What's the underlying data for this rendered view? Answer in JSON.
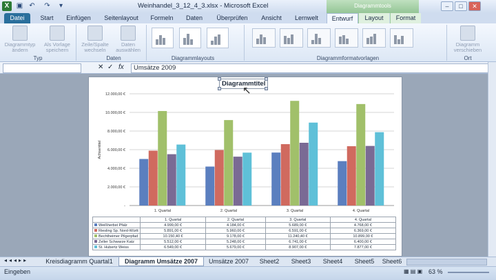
{
  "window": {
    "title": "Weinhandel_3_12_4_3.xlsx - Microsoft Excel",
    "context_tools": "Diagrammtools"
  },
  "ribbon_tabs": [
    "Datei",
    "Start",
    "Einfügen",
    "Seitenlayout",
    "Formeln",
    "Daten",
    "Überprüfen",
    "Ansicht",
    "Lernwelt",
    "Entwurf",
    "Layout",
    "Format"
  ],
  "ribbon": {
    "groups": [
      "Typ",
      "Daten",
      "Diagrammlayouts",
      "Diagrammformatvorlagen",
      "Ort"
    ],
    "buttons": {
      "change_type": "Diagrammtyp ändern",
      "save_template": "Als Vorlage speichern",
      "switch_row_col": "Zeile/Spalte wechseln",
      "select_data": "Daten auswählen",
      "move_chart": "Diagramm verschieben"
    }
  },
  "formula_bar": {
    "content": "Umsätze 2009"
  },
  "chart": {
    "title": "Diagrammtitel",
    "ylabel": "Achsentitel"
  },
  "sheet_tabs": [
    "Kreisdiagramm Quartal1",
    "Diagramm Umsätze 2007",
    "Umsätze 2007",
    "Sheet2",
    "Sheet3",
    "Sheet4",
    "Sheet5",
    "Sheet6"
  ],
  "status": {
    "mode": "Eingeben",
    "zoom": "63 %"
  },
  "colors": {
    "series": [
      "#5b7fbf",
      "#d06a5f",
      "#a1c06a",
      "#7a6a94",
      "#5fc0d8"
    ]
  },
  "chart_data": {
    "type": "bar",
    "title": "Diagrammtitel",
    "ylabel": "Achsentitel",
    "categories": [
      "1. Quartal",
      "2. Quartal",
      "3. Quartal",
      "4. Quartal"
    ],
    "ylim": [
      0,
      12000
    ],
    "yticks": [
      "-",
      "2.000,00 €",
      "4.000,00 €",
      "6.000,00 €",
      "8.000,00 €",
      "10.000,00 €",
      "12.000,00 €"
    ],
    "grid": true,
    "series": [
      {
        "name": "Weißherbst Pfalz",
        "values": [
          4999,
          4184,
          5689,
          4768
        ],
        "labels": [
          "4.999,00 €",
          "4.184,00 €",
          "5.689,00 €",
          "4.768,00 €"
        ]
      },
      {
        "name": "Riesling Sp. Nord-Württ",
        "values": [
          5891,
          5960,
          6591,
          6369
        ],
        "labels": [
          "5.891,00 €",
          "5.960,00 €",
          "6.591,00 €",
          "6.369,00 €"
        ]
      },
      {
        "name": "Bechtheimer Pilgerpfad",
        "values": [
          10150,
          9178,
          11240,
          10899
        ],
        "labels": [
          "10.150,40 €",
          "9.178,00 €",
          "11.240,40 €",
          "10.899,00 €"
        ]
      },
      {
        "name": "Zeller Schwarze Katz",
        "values": [
          5512,
          5248,
          6741,
          6400
        ],
        "labels": [
          "5.512,00 €",
          "5.248,00 €",
          "6.741,00 €",
          "6.400,00 €"
        ]
      },
      {
        "name": "St. Hubertz Weiss",
        "values": [
          6549,
          5679,
          8907,
          7877
        ],
        "labels": [
          "6.549,00 €",
          "5.679,00 €",
          "8.907,00 €",
          "7.877,00 €"
        ]
      }
    ]
  }
}
